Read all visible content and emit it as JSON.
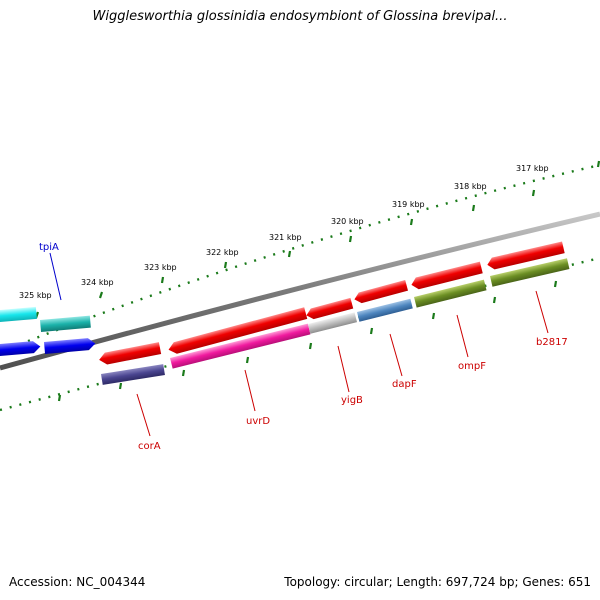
{
  "title": "Wigglesworthia glossinidia endosymbiont of Glossina brevipal...",
  "footer": {
    "accession": "Accession: NC_004344",
    "summary": "Topology: circular; Length: 697,724 bp; Genes: 651"
  },
  "ticks": [
    {
      "label": "317 kbp"
    },
    {
      "label": "318 kbp"
    },
    {
      "label": "319 kbp"
    },
    {
      "label": "320 kbp"
    },
    {
      "label": "321 kbp"
    },
    {
      "label": "322 kbp"
    },
    {
      "label": "323 kbp"
    },
    {
      "label": "324 kbp"
    },
    {
      "label": "325 kbp"
    }
  ],
  "genes": [
    {
      "name": "tpiA",
      "label_color": "#0000cc"
    },
    {
      "name": "corA",
      "label_color": "#cc0000"
    },
    {
      "name": "uvrD",
      "label_color": "#cc0000"
    },
    {
      "name": "yigB",
      "label_color": "#cc0000"
    },
    {
      "name": "dapF",
      "label_color": "#cc0000"
    },
    {
      "name": "ompF",
      "label_color": "#cc0000"
    },
    {
      "name": "b2817",
      "label_color": "#cc0000"
    }
  ],
  "colors": {
    "backbone": "#808080",
    "tick_marks": "#1a7a1a",
    "forward_strand": "#ee0000"
  }
}
